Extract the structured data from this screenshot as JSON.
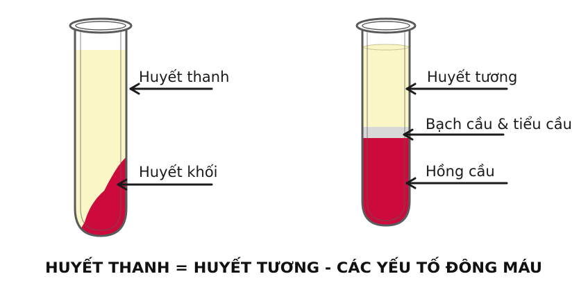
{
  "left_tube": {
    "labels": {
      "serum": "Huyết thanh",
      "clot": "Huyết khối"
    }
  },
  "right_tube": {
    "labels": {
      "plasma": "Huyết tương",
      "buffy_coat": "Bạch cầu & tiểu cầu",
      "red_cells": "Hồng cầu"
    }
  },
  "caption": "HUYẾT THANH = HUYẾT TƯƠNG - CÁC YẾU TỐ ĐÔNG MÁU",
  "colors": {
    "serum": "#fbf6c6",
    "plasma": "#fbf6c6",
    "buffy_coat": "#d8d8d8",
    "blood": "#cc0b3c",
    "glass_outline": "#5a5a5a",
    "arrow": "#1a1a1a",
    "text": "#1a1a1a"
  }
}
